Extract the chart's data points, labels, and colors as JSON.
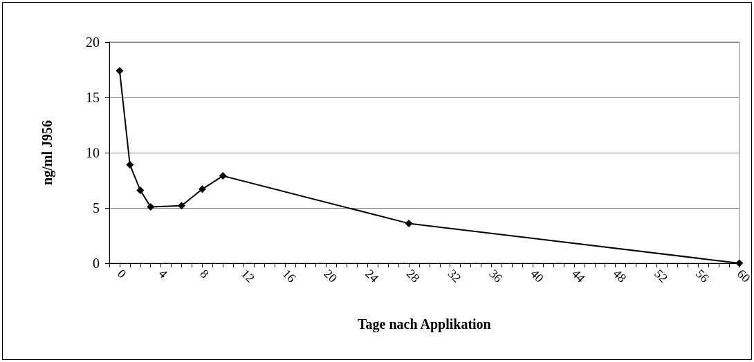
{
  "chart_data": {
    "type": "line",
    "xlabel": "Tage nach Applikation",
    "ylabel": "ng/ml J956",
    "x": [
      0,
      1,
      2,
      3,
      6,
      8,
      10,
      28,
      60
    ],
    "series": [
      {
        "color": "#000000",
        "values": [
          17.4,
          8.9,
          6.6,
          5.1,
          5.2,
          6.7,
          7.9,
          3.6,
          0
        ]
      }
    ],
    "xlim": [
      -1,
      60
    ],
    "xticks": [
      {
        "value": -1,
        "label": null
      },
      0,
      {
        "value": 1,
        "label": null
      },
      {
        "value": 2,
        "label": null
      },
      {
        "value": 3,
        "label": null
      },
      4,
      {
        "value": 5,
        "label": null
      },
      {
        "value": 6,
        "label": null
      },
      {
        "value": 7,
        "label": null
      },
      8,
      {
        "value": 9,
        "label": null
      },
      {
        "value": 10,
        "label": null
      },
      {
        "value": 11,
        "label": null
      },
      12,
      {
        "value": 13,
        "label": null
      },
      {
        "value": 14,
        "label": null
      },
      {
        "value": 15,
        "label": null
      },
      16,
      {
        "value": 17,
        "label": null
      },
      {
        "value": 18,
        "label": null
      },
      {
        "value": 19,
        "label": null
      },
      20,
      {
        "value": 21,
        "label": null
      },
      {
        "value": 22,
        "label": null
      },
      {
        "value": 23,
        "label": null
      },
      24,
      {
        "value": 25,
        "label": null
      },
      {
        "value": 26,
        "label": null
      },
      {
        "value": 27,
        "label": null
      },
      28,
      {
        "value": 29,
        "label": null
      },
      {
        "value": 30,
        "label": null
      },
      {
        "value": 31,
        "label": null
      },
      32,
      {
        "value": 33,
        "label": null
      },
      {
        "value": 34,
        "label": null
      },
      {
        "value": 35,
        "label": null
      },
      36,
      {
        "value": 37,
        "label": null
      },
      {
        "value": 38,
        "label": null
      },
      {
        "value": 39,
        "label": null
      },
      40,
      {
        "value": 41,
        "label": null
      },
      {
        "value": 42,
        "label": null
      },
      {
        "value": 43,
        "label": null
      },
      44,
      {
        "value": 45,
        "label": null
      },
      {
        "value": 46,
        "label": null
      },
      {
        "value": 47,
        "label": null
      },
      48,
      {
        "value": 49,
        "label": null
      },
      {
        "value": 50,
        "label": null
      },
      {
        "value": 51,
        "label": null
      },
      52,
      {
        "value": 53,
        "label": null
      },
      {
        "value": 54,
        "label": null
      },
      {
        "value": 55,
        "label": null
      },
      56,
      {
        "value": 57,
        "label": null
      },
      {
        "value": 58,
        "label": null
      },
      {
        "value": 59,
        "label": null
      },
      60
    ],
    "ylim": [
      0,
      20
    ],
    "yticks": [
      0,
      5,
      10,
      15,
      20
    ],
    "grid": "y",
    "marker": "diamond",
    "line_style": "solid"
  }
}
